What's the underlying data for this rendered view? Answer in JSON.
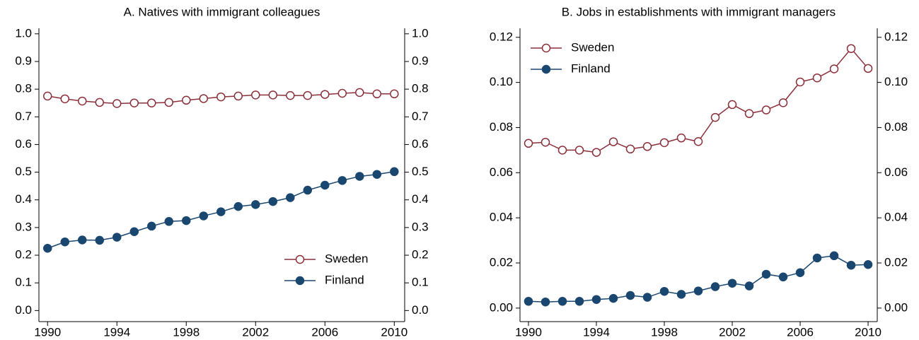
{
  "chart_data": [
    {
      "type": "line",
      "title": "A. Natives with immigrant colleagues",
      "x": [
        1990,
        1991,
        1992,
        1993,
        1994,
        1995,
        1996,
        1997,
        1998,
        1999,
        2000,
        2001,
        2002,
        2003,
        2004,
        2005,
        2006,
        2007,
        2008,
        2009,
        2010
      ],
      "series": [
        {
          "name": "Sweden",
          "color": "#8b2f3a",
          "marker": "hollow-circle",
          "values": [
            0.775,
            0.765,
            0.757,
            0.752,
            0.748,
            0.75,
            0.75,
            0.752,
            0.76,
            0.766,
            0.772,
            0.775,
            0.779,
            0.779,
            0.777,
            0.777,
            0.781,
            0.785,
            0.788,
            0.783,
            0.783
          ]
        },
        {
          "name": "Finland",
          "color": "#1a476f",
          "marker": "circle",
          "values": [
            0.225,
            0.248,
            0.255,
            0.254,
            0.265,
            0.285,
            0.305,
            0.322,
            0.325,
            0.342,
            0.357,
            0.376,
            0.383,
            0.394,
            0.408,
            0.435,
            0.453,
            0.47,
            0.485,
            0.492,
            0.502
          ]
        }
      ],
      "xlim": [
        1989.5,
        2010.6
      ],
      "xticks": [
        1990,
        1994,
        1998,
        2002,
        2006,
        2010
      ],
      "ylim": [
        -0.04,
        1.02
      ],
      "yticks": [
        {
          "value": 0,
          "label": "0.0"
        },
        0.1,
        0.2,
        0.3,
        0.4,
        0.5,
        0.6,
        0.7,
        0.8,
        0.9,
        {
          "value": 1,
          "label": "1.0"
        }
      ],
      "mirror_y_axis": true,
      "legend": "lower right"
    },
    {
      "type": "line",
      "title": "B. Jobs in establishments with immigrant managers",
      "x": [
        1990,
        1991,
        1992,
        1993,
        1994,
        1995,
        1996,
        1997,
        1998,
        1999,
        2000,
        2001,
        2002,
        2003,
        2004,
        2005,
        2006,
        2007,
        2008,
        2009,
        2010
      ],
      "series": [
        {
          "name": "Sweden",
          "color": "#8b2f3a",
          "marker": "hollow-circle",
          "values": [
            0.073,
            0.0735,
            0.07,
            0.07,
            0.069,
            0.0737,
            0.0705,
            0.0716,
            0.0733,
            0.0754,
            0.0738,
            0.0845,
            0.0902,
            0.0862,
            0.0878,
            0.091,
            0.1002,
            0.102,
            0.106,
            0.115,
            0.1062
          ]
        },
        {
          "name": "Finland",
          "color": "#1a476f",
          "marker": "circle",
          "values": [
            0.003,
            0.0027,
            0.003,
            0.003,
            0.0038,
            0.0043,
            0.0056,
            0.0048,
            0.0074,
            0.0061,
            0.0076,
            0.0095,
            0.011,
            0.0098,
            0.015,
            0.0138,
            0.0157,
            0.0222,
            0.0232,
            0.019,
            0.0193
          ]
        }
      ],
      "xlim": [
        1989.5,
        2010.54
      ],
      "xticks": [
        1990,
        1994,
        1998,
        2002,
        2006,
        2010
      ],
      "ylim": [
        -0.006,
        0.124
      ],
      "yticks": [
        {
          "value": 0,
          "label": "0.00"
        },
        0.02,
        0.04,
        0.06,
        0.08,
        {
          "value": 0.1,
          "label": "0.10"
        },
        0.12
      ],
      "mirror_y_axis": true,
      "legend": "upper left"
    }
  ]
}
